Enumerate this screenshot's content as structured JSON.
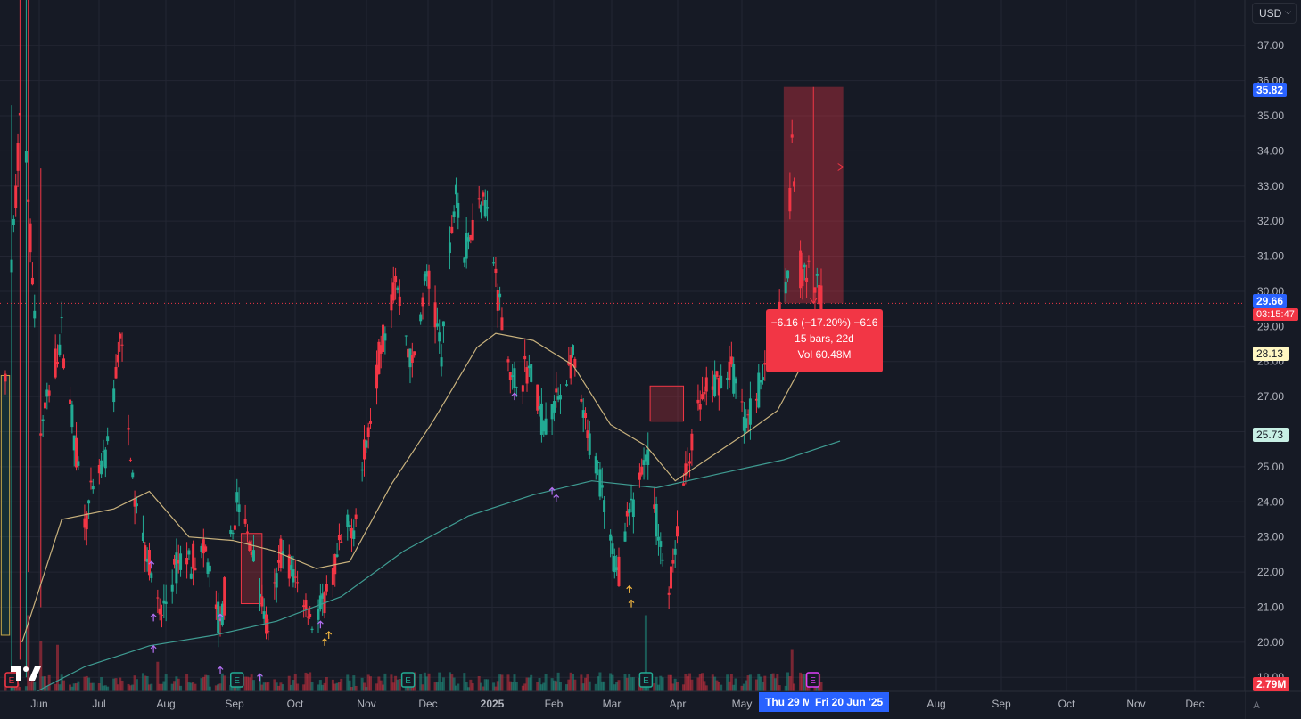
{
  "currency": {
    "label": "USD"
  },
  "auto_button": "A",
  "chart_data": {
    "type": "candlestick",
    "y_axis": {
      "min": 18.6,
      "max": 38.3,
      "ticks": [
        "19.00",
        "20.00",
        "21.00",
        "22.00",
        "23.00",
        "24.00",
        "25.00",
        "26.00",
        "27.00",
        "28.00",
        "29.00",
        "30.00",
        "31.00",
        "32.00",
        "33.00",
        "34.00",
        "35.00",
        "36.00",
        "37.00"
      ]
    },
    "x_axis": {
      "labels": [
        "Jun",
        "Jul",
        "Aug",
        "Sep",
        "Oct",
        "Nov",
        "Dec",
        "2025",
        "Feb",
        "Mar",
        "Apr",
        "May",
        "Aug",
        "Sep",
        "Oct",
        "Nov",
        "Dec"
      ],
      "strong_labels": [
        "2025"
      ]
    },
    "colors": {
      "up": "#22ab94",
      "down": "#f23645",
      "ma_short": "#c9b27d",
      "ma_long": "#3f9c92",
      "price_line": "#f23645"
    },
    "series": [
      {
        "name": "",
        "kind": "ohlc_path",
        "anchors": [
          [
            "2024-05-24",
            27.5
          ],
          [
            "2024-06-01",
            36.0
          ],
          [
            "2024-06-10",
            26.0
          ],
          [
            "2024-06-20",
            28.8
          ],
          [
            "2024-07-01",
            23.5
          ],
          [
            "2024-07-12",
            25.5
          ],
          [
            "2024-07-18",
            28.7
          ],
          [
            "2024-07-25",
            24.0
          ],
          [
            "2024-08-02",
            22.0
          ],
          [
            "2024-08-06",
            20.6
          ],
          [
            "2024-08-15",
            22.3
          ],
          [
            "2024-08-28",
            22.5
          ],
          [
            "2024-09-04",
            20.4
          ],
          [
            "2024-09-12",
            24.0
          ],
          [
            "2024-09-20",
            22.5
          ],
          [
            "2024-09-27",
            20.1
          ],
          [
            "2024-10-03",
            22.6
          ],
          [
            "2024-10-10",
            21.8
          ],
          [
            "2024-10-18",
            20.6
          ],
          [
            "2024-10-25",
            21.2
          ],
          [
            "2024-11-01",
            22.8
          ],
          [
            "2024-11-07",
            23.4
          ],
          [
            "2024-11-14",
            26.0
          ],
          [
            "2024-11-20",
            28.5
          ],
          [
            "2024-11-27",
            30.3
          ],
          [
            "2024-12-05",
            27.8
          ],
          [
            "2024-12-12",
            30.5
          ],
          [
            "2024-12-19",
            28.3
          ],
          [
            "2024-12-26",
            33.1
          ],
          [
            "2024-12-30",
            31.0
          ],
          [
            "2025-01-08",
            33.0
          ],
          [
            "2025-01-15",
            30.0
          ],
          [
            "2025-01-22",
            27.3
          ],
          [
            "2025-01-30",
            27.8
          ],
          [
            "2025-02-06",
            26.2
          ],
          [
            "2025-02-13",
            27.0
          ],
          [
            "2025-02-20",
            28.0
          ],
          [
            "2025-02-27",
            25.8
          ],
          [
            "2025-03-06",
            24.5
          ],
          [
            "2025-03-13",
            21.9
          ],
          [
            "2025-03-20",
            23.8
          ],
          [
            "2025-03-27",
            25.4
          ],
          [
            "2025-04-02",
            23.0
          ],
          [
            "2025-04-07",
            21.4
          ],
          [
            "2025-04-14",
            24.5
          ],
          [
            "2025-04-22",
            26.8
          ],
          [
            "2025-04-30",
            27.4
          ],
          [
            "2025-05-07",
            27.8
          ],
          [
            "2025-05-14",
            26.2
          ],
          [
            "2025-05-22",
            27.6
          ],
          [
            "2025-05-29",
            29.0
          ],
          [
            "2025-06-03",
            30.8
          ],
          [
            "2025-06-05",
            34.5
          ],
          [
            "2025-06-08",
            30.6
          ],
          [
            "2025-06-14",
            30.4
          ],
          [
            "2025-06-18",
            29.9
          ],
          [
            "2025-06-20",
            29.66
          ]
        ]
      },
      {
        "name": "",
        "kind": "moving_average_short",
        "points": [
          [
            "2024-06-01",
            20.0
          ],
          [
            "2024-06-20",
            23.5
          ],
          [
            "2024-07-15",
            23.8
          ],
          [
            "2024-08-01",
            24.3
          ],
          [
            "2024-08-20",
            23.0
          ],
          [
            "2024-09-10",
            22.9
          ],
          [
            "2024-09-30",
            22.6
          ],
          [
            "2024-10-20",
            22.1
          ],
          [
            "2024-11-05",
            22.3
          ],
          [
            "2024-11-25",
            24.5
          ],
          [
            "2024-12-15",
            26.3
          ],
          [
            "2025-01-05",
            28.4
          ],
          [
            "2025-01-14",
            28.8
          ],
          [
            "2025-02-01",
            28.6
          ],
          [
            "2025-02-20",
            27.9
          ],
          [
            "2025-03-10",
            26.2
          ],
          [
            "2025-03-27",
            25.6
          ],
          [
            "2025-04-10",
            24.6
          ],
          [
            "2025-04-25",
            25.2
          ],
          [
            "2025-05-15",
            26.0
          ],
          [
            "2025-05-29",
            26.6
          ],
          [
            "2025-06-08",
            27.7
          ],
          [
            "2025-06-20",
            28.13
          ]
        ]
      },
      {
        "name": "",
        "kind": "moving_average_long",
        "points": [
          [
            "2024-06-05",
            18.5
          ],
          [
            "2024-07-01",
            19.3
          ],
          [
            "2024-08-01",
            19.9
          ],
          [
            "2024-09-01",
            20.2
          ],
          [
            "2024-10-01",
            20.6
          ],
          [
            "2024-11-01",
            21.3
          ],
          [
            "2024-12-01",
            22.6
          ],
          [
            "2025-01-01",
            23.6
          ],
          [
            "2025-02-01",
            24.2
          ],
          [
            "2025-03-01",
            24.6
          ],
          [
            "2025-04-01",
            24.4
          ],
          [
            "2025-05-01",
            24.8
          ],
          [
            "2025-06-01",
            25.2
          ],
          [
            "2025-06-28",
            25.73
          ]
        ]
      }
    ],
    "rectangles": [
      {
        "from": "2024-05-22",
        "to": "2024-05-26",
        "low": 20.2,
        "high": 27.6,
        "tone": "up"
      },
      {
        "from": "2024-09-14",
        "to": "2024-09-24",
        "low": 21.1,
        "high": 23.1,
        "tone": "down"
      },
      {
        "from": "2025-03-29",
        "to": "2025-04-14",
        "low": 26.3,
        "high": 27.3,
        "tone": "down"
      }
    ],
    "measure": {
      "from": "2025-06-01",
      "to": "2025-06-21",
      "start": 35.82,
      "end": 29.66
    },
    "current_price_line": 29.66,
    "arrows": [
      {
        "date": "2024-08-02",
        "price": 22.3,
        "color": "#b36ff2"
      },
      {
        "date": "2024-08-03",
        "price": 20.8,
        "color": "#b36ff2"
      },
      {
        "date": "2024-08-03",
        "price": 19.9,
        "color": "#b36ff2"
      },
      {
        "date": "2024-09-04",
        "price": 20.8,
        "color": "#b36ff2"
      },
      {
        "date": "2024-09-04",
        "price": 19.3,
        "color": "#b36ff2"
      },
      {
        "date": "2024-09-23",
        "price": 19.1,
        "color": "#b36ff2"
      },
      {
        "date": "2024-10-22",
        "price": 20.6,
        "color": "#b36ff2"
      },
      {
        "date": "2024-10-24",
        "price": 20.1,
        "color": "#f5b942"
      },
      {
        "date": "2024-10-26",
        "price": 20.3,
        "color": "#f5b942"
      },
      {
        "date": "2025-01-23",
        "price": 27.1,
        "color": "#b36ff2"
      },
      {
        "date": "2025-02-10",
        "price": 24.4,
        "color": "#b36ff2"
      },
      {
        "date": "2025-02-12",
        "price": 24.2,
        "color": "#b36ff2"
      },
      {
        "date": "2025-03-19",
        "price": 21.6,
        "color": "#f5b942"
      },
      {
        "date": "2025-03-20",
        "price": 21.2,
        "color": "#f5b942"
      }
    ],
    "earnings_markers": [
      {
        "date": "2024-05-27",
        "color": "#f23645"
      },
      {
        "date": "2024-09-12",
        "color": "#22ab94"
      },
      {
        "date": "2024-12-03",
        "color": "#22ab94"
      },
      {
        "date": "2025-03-27",
        "color": "#22ab94"
      },
      {
        "date": "2025-06-15",
        "color": "#e040fb"
      }
    ],
    "volume_spikes": [
      {
        "date": "2024-06-01",
        "level": 0.95
      },
      {
        "date": "2024-06-04",
        "level": 0.9
      },
      {
        "date": "2024-06-10",
        "level": 0.6
      },
      {
        "date": "2024-06-18",
        "level": 0.55
      },
      {
        "date": "2024-08-05",
        "level": 0.35
      },
      {
        "date": "2025-03-27",
        "level": 0.9
      },
      {
        "date": "2025-06-05",
        "level": 0.5
      }
    ]
  },
  "price_labels": {
    "measure_high": "35.82",
    "last": "29.66",
    "countdown": "03:15:47",
    "ma_short": "28.13",
    "ma_long": "25.73",
    "volume": "2.79M"
  },
  "tooltip": {
    "line1": "−6.16 (−17.20%) −616",
    "line2": "15 bars, 22d",
    "line3": "Vol 60.48M"
  },
  "date_range": {
    "start": "Thu 29 M",
    "end": "Fri 20 Jun '25"
  },
  "earnings_glyph": "E"
}
